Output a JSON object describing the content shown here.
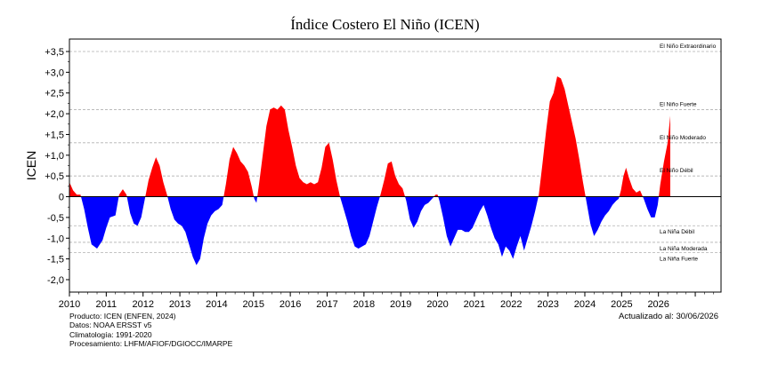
{
  "chart_data": {
    "type": "area",
    "title": "Índice Costero El Niño (ICEN)",
    "xlabel": "",
    "ylabel": "ICEN",
    "xlim": [
      2010,
      2027.7
    ],
    "ylim": [
      -2.3,
      3.8
    ],
    "x_ticks": [
      "2010",
      "2011",
      "2012",
      "2013",
      "2014",
      "2015",
      "2016",
      "2017",
      "2018",
      "2019",
      "2020",
      "2021",
      "2022",
      "2023",
      "2024",
      "2025",
      "2026"
    ],
    "y_ticks": [
      "+3,5",
      "+3,0",
      "+2,5",
      "+2,0",
      "+1,5",
      "+1,0",
      "+0,5",
      "0",
      "-0,5",
      "-1,0",
      "-1,5",
      "-2,0"
    ],
    "grid": "dashed at threshold levels",
    "positive_color": "#ff0000",
    "negative_color": "#0000ff",
    "thresholds": [
      {
        "label": "El Niño Extraordinario",
        "value": 3.5
      },
      {
        "label": "El Niño Fuerte",
        "value": 2.1
      },
      {
        "label": "El Niño Moderado",
        "value": 1.3
      },
      {
        "label": "El Niño Débil",
        "value": 0.5
      },
      {
        "label": "La Niña Débil",
        "value": -0.7
      },
      {
        "label": "La Niña Moderada",
        "value": -1.1
      },
      {
        "label": "La Niña Fuerte",
        "value": -1.35
      }
    ],
    "series": [
      {
        "points": [
          [
            2010.0,
            0.35
          ],
          [
            2010.1,
            0.15
          ],
          [
            2010.2,
            0.05
          ],
          [
            2010.3,
            0.05
          ],
          [
            2010.4,
            -0.3
          ],
          [
            2010.5,
            -0.75
          ],
          [
            2010.6,
            -1.15
          ],
          [
            2010.75,
            -1.25
          ],
          [
            2010.9,
            -1.05
          ],
          [
            2011.0,
            -0.75
          ],
          [
            2011.1,
            -0.5
          ],
          [
            2011.25,
            -0.45
          ],
          [
            2011.35,
            0.05
          ],
          [
            2011.45,
            0.18
          ],
          [
            2011.55,
            0.05
          ],
          [
            2011.65,
            -0.4
          ],
          [
            2011.75,
            -0.65
          ],
          [
            2011.85,
            -0.7
          ],
          [
            2011.95,
            -0.5
          ],
          [
            2012.05,
            -0.05
          ],
          [
            2012.15,
            0.4
          ],
          [
            2012.25,
            0.7
          ],
          [
            2012.35,
            0.95
          ],
          [
            2012.45,
            0.75
          ],
          [
            2012.55,
            0.35
          ],
          [
            2012.65,
            0.05
          ],
          [
            2012.75,
            -0.3
          ],
          [
            2012.85,
            -0.55
          ],
          [
            2012.95,
            -0.65
          ],
          [
            2013.05,
            -0.7
          ],
          [
            2013.15,
            -0.85
          ],
          [
            2013.25,
            -1.15
          ],
          [
            2013.35,
            -1.45
          ],
          [
            2013.45,
            -1.65
          ],
          [
            2013.55,
            -1.5
          ],
          [
            2013.65,
            -1.0
          ],
          [
            2013.75,
            -0.65
          ],
          [
            2013.85,
            -0.45
          ],
          [
            2013.95,
            -0.35
          ],
          [
            2014.05,
            -0.3
          ],
          [
            2014.15,
            -0.2
          ],
          [
            2014.25,
            0.3
          ],
          [
            2014.35,
            0.9
          ],
          [
            2014.45,
            1.2
          ],
          [
            2014.55,
            1.05
          ],
          [
            2014.65,
            0.85
          ],
          [
            2014.75,
            0.75
          ],
          [
            2014.85,
            0.6
          ],
          [
            2014.95,
            0.25
          ],
          [
            2015.02,
            -0.05
          ],
          [
            2015.08,
            -0.15
          ],
          [
            2015.15,
            0.3
          ],
          [
            2015.25,
            1.0
          ],
          [
            2015.35,
            1.7
          ],
          [
            2015.45,
            2.1
          ],
          [
            2015.55,
            2.15
          ],
          [
            2015.65,
            2.1
          ],
          [
            2015.75,
            2.2
          ],
          [
            2015.85,
            2.1
          ],
          [
            2015.95,
            1.6
          ],
          [
            2016.05,
            1.2
          ],
          [
            2016.15,
            0.75
          ],
          [
            2016.25,
            0.45
          ],
          [
            2016.35,
            0.35
          ],
          [
            2016.45,
            0.3
          ],
          [
            2016.55,
            0.35
          ],
          [
            2016.65,
            0.3
          ],
          [
            2016.75,
            0.35
          ],
          [
            2016.85,
            0.7
          ],
          [
            2016.95,
            1.2
          ],
          [
            2017.05,
            1.3
          ],
          [
            2017.15,
            0.9
          ],
          [
            2017.25,
            0.4
          ],
          [
            2017.35,
            0.0
          ],
          [
            2017.45,
            -0.3
          ],
          [
            2017.55,
            -0.6
          ],
          [
            2017.65,
            -0.95
          ],
          [
            2017.75,
            -1.2
          ],
          [
            2017.85,
            -1.25
          ],
          [
            2017.95,
            -1.2
          ],
          [
            2018.05,
            -1.15
          ],
          [
            2018.15,
            -0.95
          ],
          [
            2018.25,
            -0.6
          ],
          [
            2018.35,
            -0.25
          ],
          [
            2018.45,
            0.05
          ],
          [
            2018.55,
            0.4
          ],
          [
            2018.65,
            0.8
          ],
          [
            2018.75,
            0.85
          ],
          [
            2018.85,
            0.5
          ],
          [
            2018.95,
            0.3
          ],
          [
            2019.05,
            0.2
          ],
          [
            2019.15,
            -0.1
          ],
          [
            2019.25,
            -0.55
          ],
          [
            2019.35,
            -0.75
          ],
          [
            2019.45,
            -0.6
          ],
          [
            2019.55,
            -0.35
          ],
          [
            2019.65,
            -0.2
          ],
          [
            2019.75,
            -0.15
          ],
          [
            2019.85,
            -0.05
          ],
          [
            2019.95,
            0.05
          ],
          [
            2020.0,
            0.05
          ],
          [
            2020.05,
            -0.1
          ],
          [
            2020.15,
            -0.5
          ],
          [
            2020.25,
            -0.95
          ],
          [
            2020.35,
            -1.2
          ],
          [
            2020.45,
            -1.0
          ],
          [
            2020.55,
            -0.8
          ],
          [
            2020.65,
            -0.8
          ],
          [
            2020.75,
            -0.85
          ],
          [
            2020.85,
            -0.85
          ],
          [
            2020.95,
            -0.75
          ],
          [
            2021.05,
            -0.55
          ],
          [
            2021.15,
            -0.35
          ],
          [
            2021.25,
            -0.2
          ],
          [
            2021.35,
            -0.45
          ],
          [
            2021.45,
            -0.75
          ],
          [
            2021.55,
            -1.0
          ],
          [
            2021.65,
            -1.15
          ],
          [
            2021.75,
            -1.45
          ],
          [
            2021.85,
            -1.2
          ],
          [
            2021.95,
            -1.3
          ],
          [
            2022.05,
            -1.5
          ],
          [
            2022.15,
            -1.2
          ],
          [
            2022.25,
            -0.95
          ],
          [
            2022.35,
            -1.3
          ],
          [
            2022.45,
            -1.0
          ],
          [
            2022.55,
            -0.7
          ],
          [
            2022.65,
            -0.35
          ],
          [
            2022.75,
            0.05
          ],
          [
            2022.85,
            0.8
          ],
          [
            2022.95,
            1.6
          ],
          [
            2023.05,
            2.3
          ],
          [
            2023.15,
            2.5
          ],
          [
            2023.25,
            2.9
          ],
          [
            2023.35,
            2.85
          ],
          [
            2023.45,
            2.6
          ],
          [
            2023.55,
            2.2
          ],
          [
            2023.65,
            1.8
          ],
          [
            2023.75,
            1.4
          ],
          [
            2023.85,
            0.9
          ],
          [
            2023.95,
            0.35
          ],
          [
            2024.05,
            -0.15
          ],
          [
            2024.15,
            -0.65
          ],
          [
            2024.25,
            -0.95
          ],
          [
            2024.35,
            -0.8
          ],
          [
            2024.45,
            -0.6
          ],
          [
            2024.55,
            -0.45
          ],
          [
            2024.65,
            -0.35
          ],
          [
            2024.75,
            -0.2
          ],
          [
            2024.85,
            -0.1
          ],
          [
            2024.92,
            -0.05
          ],
          [
            2024.98,
            0.15
          ],
          [
            2025.05,
            0.5
          ],
          [
            2025.12,
            0.7
          ],
          [
            2025.2,
            0.45
          ],
          [
            2025.3,
            0.2
          ],
          [
            2025.4,
            0.1
          ],
          [
            2025.5,
            0.15
          ],
          [
            2025.6,
            -0.05
          ],
          [
            2025.7,
            -0.3
          ],
          [
            2025.8,
            -0.5
          ],
          [
            2025.9,
            -0.5
          ],
          [
            2025.98,
            -0.2
          ],
          [
            2026.05,
            0.3
          ],
          [
            2026.15,
            0.85
          ],
          [
            2026.25,
            1.3
          ],
          [
            2026.32,
            1.95
          ]
        ]
      }
    ]
  },
  "footer": {
    "producto": "Producto: ICEN (ENFEN, 2024)",
    "datos": "Datos: NOAA ERSST v5",
    "climatologia": "Climatología: 1991-2020",
    "procesamiento": "Procesamiento: LHFM/AFIOF/DGIOCC/IMARPE",
    "actualizado": "Actualizado al: 30/06/2026"
  }
}
